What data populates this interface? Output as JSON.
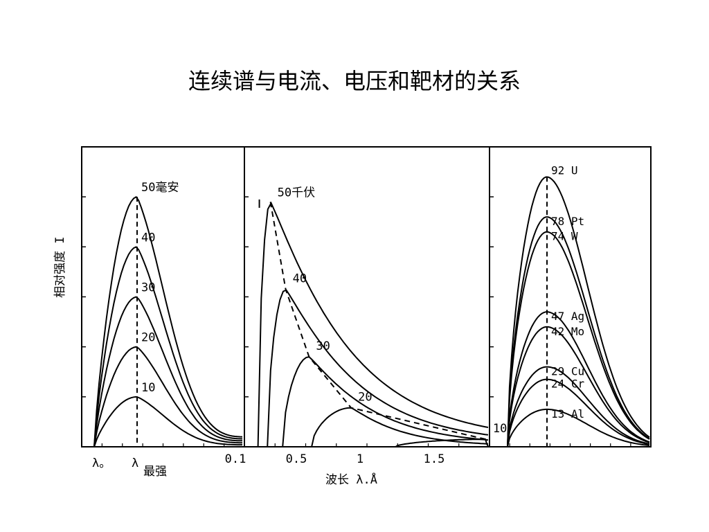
{
  "page": {
    "title": "连续谱与电流、电压和靶材的关系"
  },
  "chart_data": [
    {
      "type": "line",
      "panel": "current",
      "ylabel": "相对强度 I",
      "x_ticks": [
        "λ。",
        "λ"
      ],
      "x_tick_suffix": "最强",
      "x_range": [
        0,
        1
      ],
      "y_range": [
        0,
        60
      ],
      "peak_x": 0.3,
      "series": [
        {
          "name": "50毫安",
          "values_peak": 50
        },
        {
          "name": "40",
          "values_peak": 40
        },
        {
          "name": "30",
          "values_peak": 30
        },
        {
          "name": "20",
          "values_peak": 20
        },
        {
          "name": "10",
          "values_peak": 10
        }
      ]
    },
    {
      "type": "line",
      "panel": "voltage",
      "xlabel": "波长 λ.Å",
      "x_ticks": [
        "0.1",
        "0.5",
        "1",
        "1.5"
      ],
      "x_tick_values": [
        0.1,
        0.5,
        1.0,
        1.5
      ],
      "x_range": [
        0.1,
        1.85
      ],
      "y_range": [
        0,
        60
      ],
      "series": [
        {
          "name": "50千伏",
          "x0": 0.248,
          "peak_x": 0.33,
          "peak_y": 49
        },
        {
          "name": "40",
          "x0": 0.31,
          "peak_x": 0.43,
          "peak_y": 31.5
        },
        {
          "name": "30",
          "x0": 0.41,
          "peak_x": 0.6,
          "peak_y": 18
        },
        {
          "name": "20",
          "x0": 0.62,
          "peak_x": 0.93,
          "peak_y": 7.8
        },
        {
          "name": "10",
          "x0": 1.24,
          "peak_x": 1.85,
          "peak_y": 1.5
        }
      ]
    },
    {
      "type": "line",
      "panel": "target",
      "x_range": [
        0,
        1
      ],
      "y_range": [
        0,
        60
      ],
      "peak_x": 0.28,
      "series": [
        {
          "name": "92 U",
          "peak_y": 54
        },
        {
          "name": "78 Pt",
          "peak_y": 46
        },
        {
          "name": "74 W",
          "peak_y": 43
        },
        {
          "name": "47 Ag",
          "peak_y": 27
        },
        {
          "name": "42 Mo",
          "peak_y": 24
        },
        {
          "name": "29 Cu",
          "peak_y": 16
        },
        {
          "name": "24 Cr",
          "peak_y": 13.5
        },
        {
          "name": "13 Al",
          "peak_y": 7.5
        }
      ]
    }
  ]
}
